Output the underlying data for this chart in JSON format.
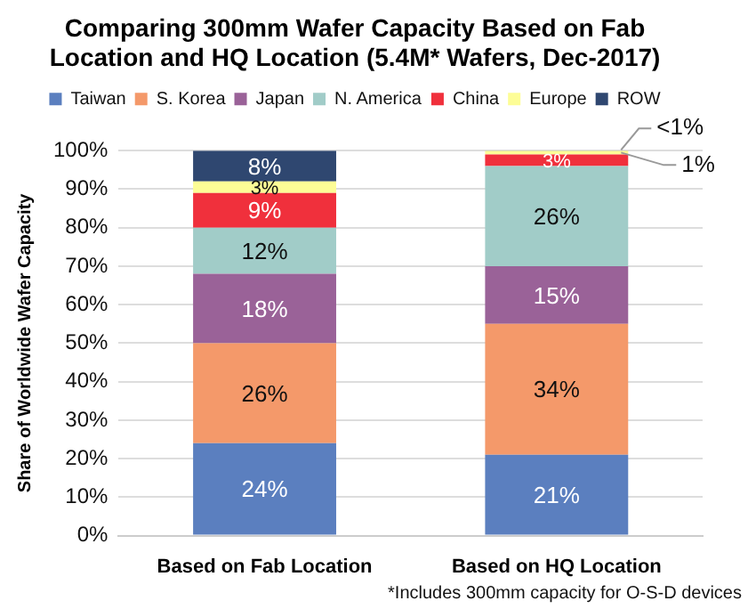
{
  "chart_data": {
    "type": "bar",
    "stacked": true,
    "title": "Comparing 300mm Wafer Capacity Based on Fab Location and HQ Location (5.4M* Wafers, Dec-2017)",
    "ylabel": "Share of Worldwide Wafer Capacity",
    "categories": [
      "Based on Fab Location",
      "Based on HQ Location"
    ],
    "series": [
      {
        "name": "Taiwan",
        "color": "#5b7fbf",
        "values": [
          24,
          21
        ],
        "value_labels": [
          "24%",
          "21%"
        ]
      },
      {
        "name": "S. Korea",
        "color": "#f4996a",
        "values": [
          26,
          34
        ],
        "value_labels": [
          "26%",
          "34%"
        ]
      },
      {
        "name": "Japan",
        "color": "#9a6298",
        "values": [
          18,
          15
        ],
        "value_labels": [
          "18%",
          "15%"
        ]
      },
      {
        "name": "N. America",
        "color": "#a1ccc8",
        "values": [
          12,
          26
        ],
        "value_labels": [
          "12%",
          "26%"
        ]
      },
      {
        "name": "China",
        "color": "#f0303c",
        "values": [
          9,
          3
        ],
        "value_labels": [
          "9%",
          "3%"
        ]
      },
      {
        "name": "Europe",
        "color": "#fdfd96",
        "values": [
          3,
          1
        ],
        "value_labels": [
          "3%",
          "1%"
        ]
      },
      {
        "name": "ROW",
        "color": "#2f4770",
        "values": [
          8,
          0.4
        ],
        "value_labels": [
          "8%",
          "<1%"
        ]
      }
    ],
    "ylim": [
      0,
      100
    ],
    "yticks": [
      {
        "value": 0,
        "label": "0%"
      },
      {
        "value": 10,
        "label": "10%"
      },
      {
        "value": 20,
        "label": "20%"
      },
      {
        "value": 30,
        "label": "30%"
      },
      {
        "value": 40,
        "label": "40%"
      },
      {
        "value": 50,
        "label": "50%"
      },
      {
        "value": 60,
        "label": "60%"
      },
      {
        "value": 70,
        "label": "70%"
      },
      {
        "value": 80,
        "label": "80%"
      },
      {
        "value": 90,
        "label": "90%"
      },
      {
        "value": 100,
        "label": "100%"
      }
    ],
    "grid": "y",
    "legend": "top",
    "annotations": [
      "*Includes 300mm capacity for O-S-D devices"
    ]
  }
}
